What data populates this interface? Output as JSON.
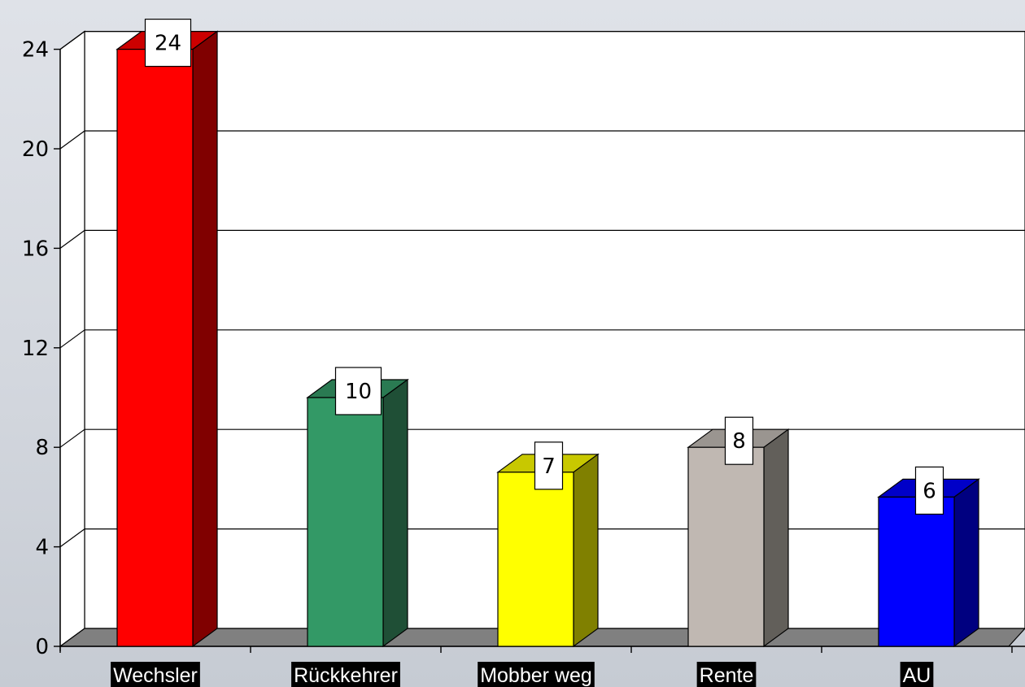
{
  "chart_data": {
    "type": "bar",
    "title": "",
    "xlabel": "",
    "ylabel": "",
    "categories": [
      "Wechsler",
      "Rückkehrer",
      "Mobber weg",
      "Rente",
      "AU"
    ],
    "values": [
      24,
      10,
      7,
      8,
      6
    ],
    "data_labels": [
      "24",
      "10",
      "7",
      "8",
      "6"
    ],
    "ylim": [
      0,
      24
    ],
    "yticks": [
      0,
      4,
      8,
      12,
      16,
      20,
      24
    ],
    "ytick_labels": [
      "0",
      "4",
      "8",
      "12",
      "16",
      "20",
      "24"
    ],
    "grid": true,
    "style": "3d",
    "colors": [
      {
        "front": "#ff0000",
        "top": "#cc0000",
        "side": "#800000"
      },
      {
        "front": "#339966",
        "top": "#2a7a52",
        "side": "#1f4f36"
      },
      {
        "front": "#ffff00",
        "top": "#c8c800",
        "side": "#808000"
      },
      {
        "front": "#c0b8b2",
        "top": "#9a9590",
        "side": "#625f5a"
      },
      {
        "front": "#0000ff",
        "top": "#0000c8",
        "side": "#000080"
      }
    ],
    "floor_color": "#808080",
    "wall_color": "#ffffff"
  }
}
